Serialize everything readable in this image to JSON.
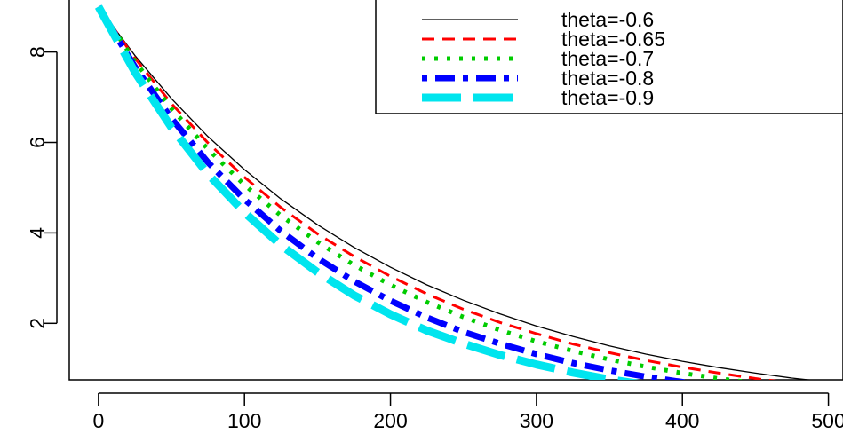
{
  "chart_data": {
    "type": "line",
    "title": "",
    "xlabel": "",
    "ylabel": "",
    "xlim": [
      -20,
      510
    ],
    "ylim": [
      0.75,
      9.15
    ],
    "xticks": [
      0,
      100,
      200,
      300,
      400,
      500
    ],
    "yticks": [
      2,
      4,
      6,
      8
    ],
    "grid": false,
    "legend_position": "top-right",
    "x": [
      0,
      25,
      50,
      75,
      100,
      125,
      150,
      175,
      200,
      225,
      250,
      275,
      300,
      325,
      350,
      375,
      400,
      425,
      450,
      475,
      500
    ],
    "series": [
      {
        "name": "theta=-0.6",
        "color": "#000000",
        "style": "solid",
        "values": [
          9.0,
          7.92,
          6.97,
          6.13,
          5.4,
          4.75,
          4.18,
          3.68,
          3.24,
          2.85,
          2.51,
          2.21,
          1.94,
          1.71,
          1.5,
          1.32,
          1.16,
          1.02,
          0.9,
          0.79,
          0.7
        ]
      },
      {
        "name": "theta=-0.65",
        "color": "#ff0000",
        "style": "dashed",
        "values": [
          9.0,
          7.86,
          6.86,
          5.99,
          5.23,
          4.56,
          3.98,
          3.48,
          3.04,
          2.65,
          2.31,
          2.02,
          1.77,
          1.54,
          1.35,
          1.18,
          1.03,
          0.9,
          0.78,
          0.68,
          0.6
        ]
      },
      {
        "name": "theta=-0.7",
        "color": "#00cc00",
        "style": "dotted",
        "values": [
          9.0,
          7.79,
          6.75,
          5.85,
          5.06,
          4.38,
          3.8,
          3.29,
          2.85,
          2.47,
          2.14,
          1.85,
          1.6,
          1.39,
          1.2,
          1.04,
          0.9,
          0.78,
          0.68,
          0.59,
          0.51
        ]
      },
      {
        "name": "theta=-0.8",
        "color": "#0000ff",
        "style": "dotdash",
        "values": [
          9.0,
          7.67,
          6.53,
          5.56,
          4.74,
          4.04,
          3.44,
          2.93,
          2.5,
          2.13,
          1.81,
          1.55,
          1.32,
          1.12,
          0.96,
          0.82,
          0.7,
          0.59,
          0.5,
          0.43,
          0.37
        ]
      },
      {
        "name": "theta=-0.9",
        "color": "#00e5ee",
        "style": "longdash",
        "values": [
          9.0,
          7.55,
          6.33,
          5.3,
          4.45,
          3.73,
          3.13,
          2.62,
          2.2,
          1.84,
          1.55,
          1.3,
          1.09,
          0.91,
          0.76,
          0.64,
          0.54,
          0.45,
          0.38,
          0.32,
          0.27
        ]
      }
    ]
  }
}
